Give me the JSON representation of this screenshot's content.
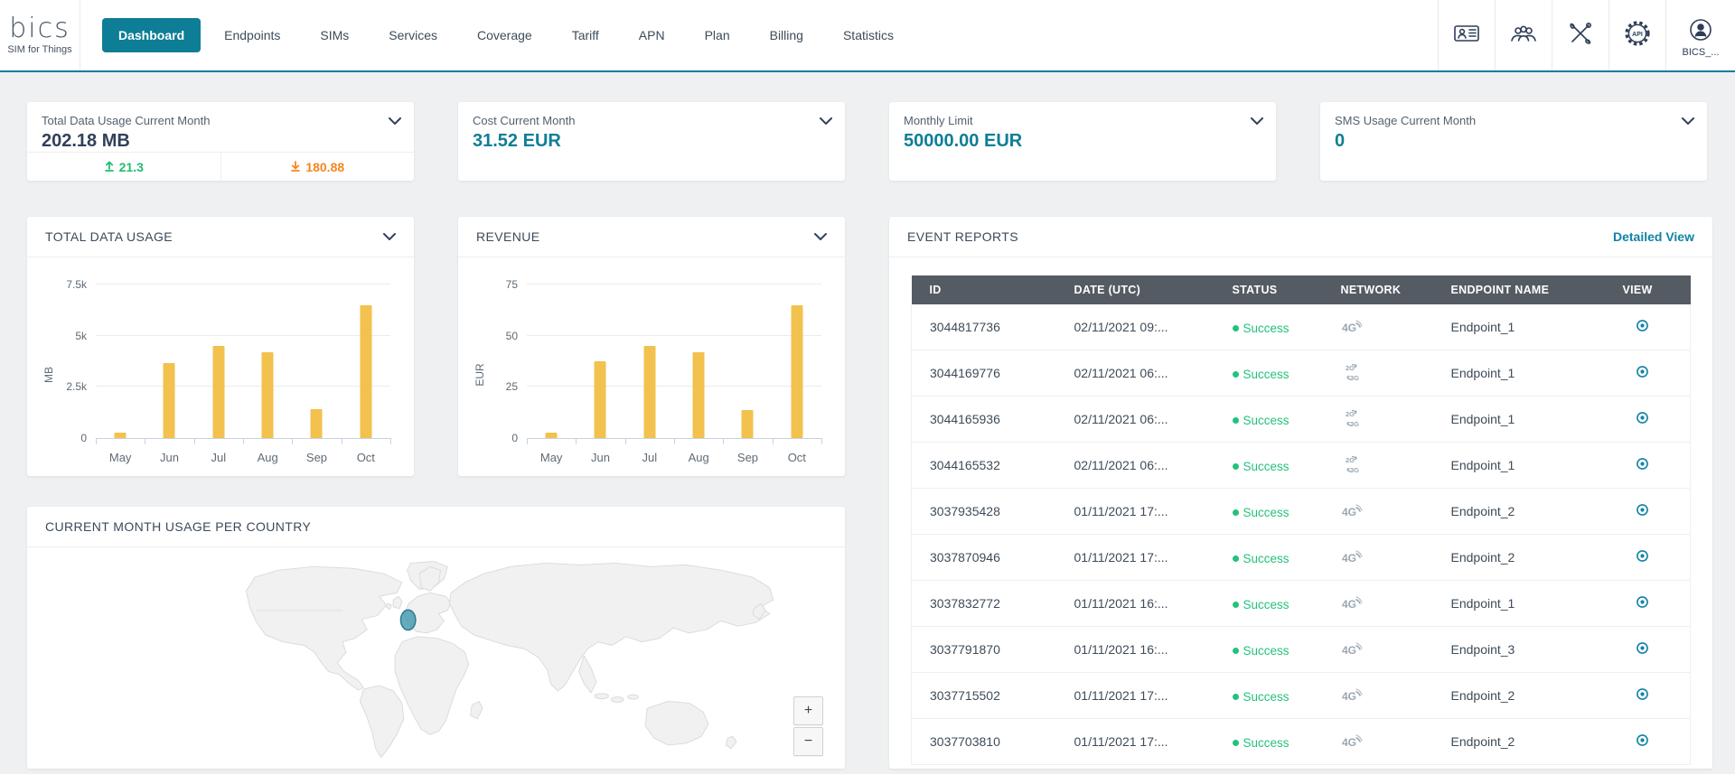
{
  "colors": {
    "bg": "#eef0f2",
    "teal": "#0e7e96",
    "teal_link": "#1183a6",
    "green": "#23c27a",
    "green_up": "#1fbd6f",
    "orange": "#f6861f",
    "amber": "#f2c14e",
    "thead": "#555b63",
    "axis": "#c8d3df"
  },
  "nav": {
    "logo": {
      "brand": "bics",
      "tagline": "SIM for Things"
    },
    "items": [
      {
        "label": "Dashboard",
        "active": true
      },
      {
        "label": "Endpoints",
        "active": false
      },
      {
        "label": "SIMs",
        "active": false
      },
      {
        "label": "Services",
        "active": false
      },
      {
        "label": "Coverage",
        "active": false
      },
      {
        "label": "Tariff",
        "active": false
      },
      {
        "label": "APN",
        "active": false
      },
      {
        "label": "Plan",
        "active": false
      },
      {
        "label": "Billing",
        "active": false
      },
      {
        "label": "Statistics",
        "active": false
      }
    ],
    "icons": [
      "contact-card",
      "users",
      "tools",
      "api-gear",
      "user-account"
    ],
    "user_label": "BICS_..."
  },
  "summary_cards": [
    {
      "title": "Total Data Usage Current Month",
      "value": "202.18 MB",
      "upload": "21.3",
      "download": "180.88"
    },
    {
      "title": "Cost Current Month",
      "value": "31.52 EUR"
    },
    {
      "title": "Monthly Limit",
      "value": "50000.00 EUR"
    },
    {
      "title": "SMS Usage Current Month",
      "value": "0"
    }
  ],
  "chart_data": [
    {
      "type": "bar",
      "title": "TOTAL DATA USAGE",
      "categories": [
        "May",
        "Jun",
        "Jul",
        "Aug",
        "Sep",
        "Oct"
      ],
      "values": [
        270,
        3650,
        4500,
        4200,
        1400,
        6500
      ],
      "ylabel": "MB",
      "xlabel": "",
      "ylim": [
        0,
        7500
      ],
      "yticks": [
        {
          "label": "0",
          "value": 0
        },
        {
          "label": "2.5k",
          "value": 2500
        },
        {
          "label": "5k",
          "value": 5000
        },
        {
          "label": "7.5k",
          "value": 7500
        }
      ],
      "grid": true,
      "legend": "none",
      "bar_color": "#f2c14e"
    },
    {
      "type": "bar",
      "title": "REVENUE",
      "categories": [
        "May",
        "Jun",
        "Jul",
        "Aug",
        "Sep",
        "Oct"
      ],
      "values": [
        2.7,
        37.5,
        45,
        42,
        13.5,
        65
      ],
      "ylabel": "EUR",
      "xlabel": "",
      "ylim": [
        0,
        75
      ],
      "yticks": [
        {
          "label": "0",
          "value": 0
        },
        {
          "label": "25",
          "value": 25
        },
        {
          "label": "50",
          "value": 50
        },
        {
          "label": "75",
          "value": 75
        }
      ],
      "grid": true,
      "legend": "none",
      "bar_color": "#f2c14e"
    }
  ],
  "event_reports": {
    "title": "EVENT REPORTS",
    "link": "Detailed View",
    "columns": [
      "ID",
      "DATE (UTC)",
      "STATUS",
      "NETWORK",
      "ENDPOINT NAME",
      "VIEW"
    ],
    "rows": [
      {
        "id": "3044817736",
        "date": "02/11/2021 09:...",
        "status": "Success",
        "network": "4G",
        "endpoint": "Endpoint_1"
      },
      {
        "id": "3044169776",
        "date": "02/11/2021 06:...",
        "status": "Success",
        "network": "2G3G",
        "endpoint": "Endpoint_1"
      },
      {
        "id": "3044165936",
        "date": "02/11/2021 06:...",
        "status": "Success",
        "network": "2G3G",
        "endpoint": "Endpoint_1"
      },
      {
        "id": "3044165532",
        "date": "02/11/2021 06:...",
        "status": "Success",
        "network": "2G3G",
        "endpoint": "Endpoint_1"
      },
      {
        "id": "3037935428",
        "date": "01/11/2021 17:...",
        "status": "Success",
        "network": "4G",
        "endpoint": "Endpoint_2"
      },
      {
        "id": "3037870946",
        "date": "01/11/2021 17:...",
        "status": "Success",
        "network": "4G",
        "endpoint": "Endpoint_2"
      },
      {
        "id": "3037832772",
        "date": "01/11/2021 16:...",
        "status": "Success",
        "network": "4G",
        "endpoint": "Endpoint_1"
      },
      {
        "id": "3037791870",
        "date": "01/11/2021 16:...",
        "status": "Success",
        "network": "4G",
        "endpoint": "Endpoint_3"
      },
      {
        "id": "3037715502",
        "date": "01/11/2021 17:...",
        "status": "Success",
        "network": "4G",
        "endpoint": "Endpoint_2"
      },
      {
        "id": "3037703810",
        "date": "01/11/2021 17:...",
        "status": "Success",
        "network": "4G",
        "endpoint": "Endpoint_2"
      }
    ]
  },
  "map_panel": {
    "title": "CURRENT MONTH USAGE PER COUNTRY",
    "zoom_in": "+",
    "zoom_out": "−",
    "marker": "western-europe"
  }
}
